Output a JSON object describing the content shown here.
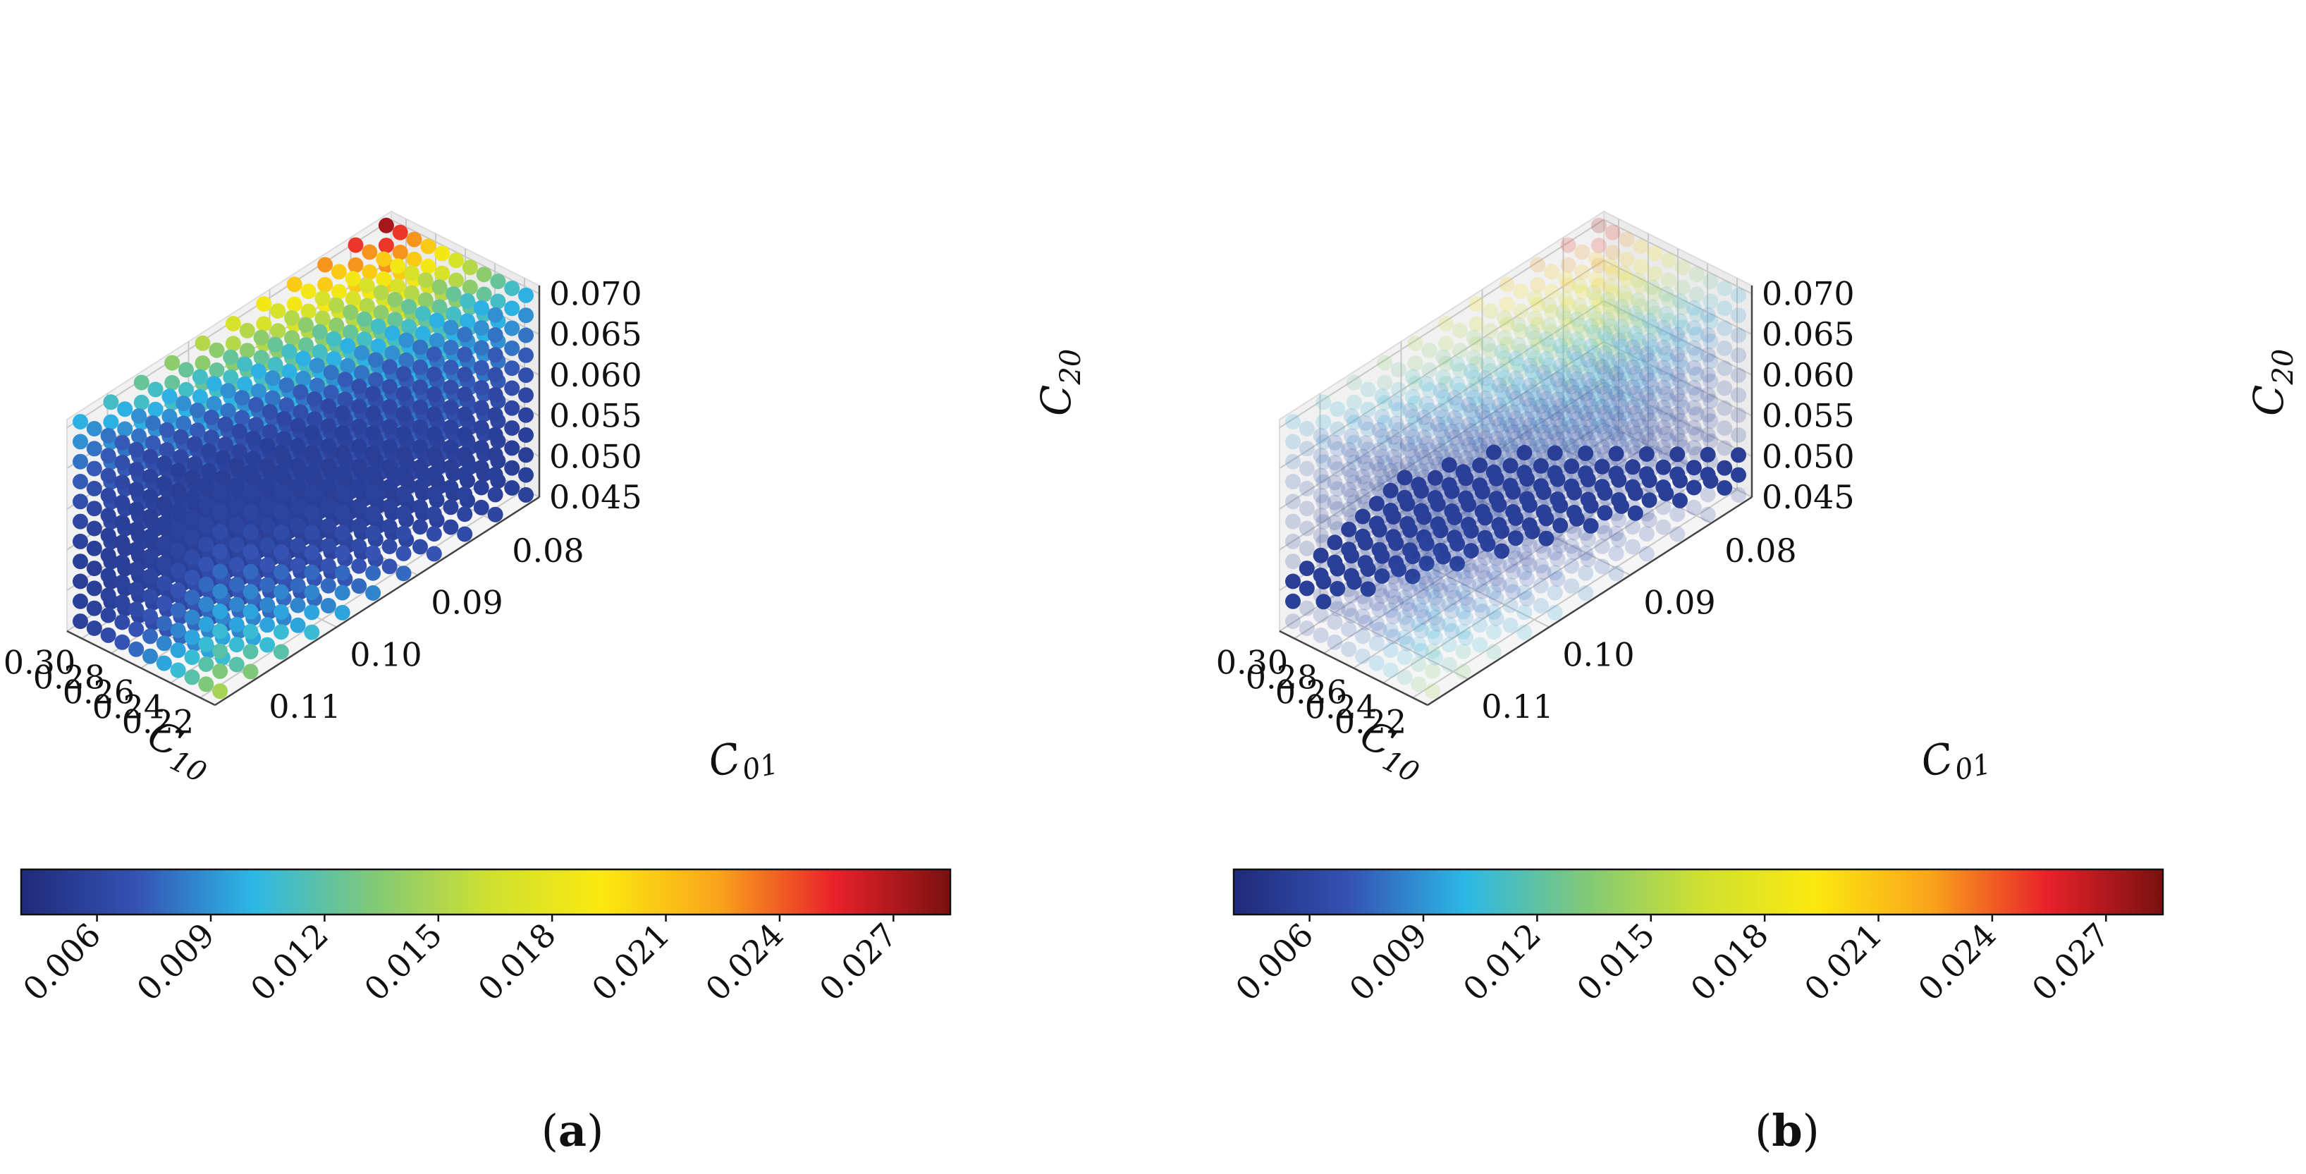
{
  "colormap": [
    "#1f2a7a",
    "#3553b3",
    "#2cb8e6",
    "#7ec87a",
    "#cde032",
    "#fbe90f",
    "#f9a41b",
    "#e8222a",
    "#7a1010"
  ],
  "chart_data": [
    {
      "type": "scatter3d",
      "panel_label": "a",
      "x_axis": {
        "sub": "10",
        "ticks": [
          "0.30",
          "0.28",
          "0.26",
          "0.24",
          "0.22"
        ],
        "range": [
          0.21,
          0.31
        ]
      },
      "y_axis": {
        "sub": "01",
        "ticks": [
          "0.08",
          "0.09",
          "0.10",
          "0.11"
        ],
        "range": [
          0.075,
          0.115
        ]
      },
      "z_axis": {
        "sub": "20",
        "ticks": [
          "0.070",
          "0.065",
          "0.060",
          "0.055",
          "0.050",
          "0.045"
        ],
        "range": [
          0.045,
          0.071
        ]
      },
      "grid": true,
      "grid_points_per_axis": 11,
      "color_range": [
        0.004,
        0.0285
      ],
      "highlight": "none",
      "colorbar": {
        "ticks": [
          "0.006",
          "0.009",
          "0.012",
          "0.015",
          "0.018",
          "0.021",
          "0.024",
          "0.027"
        ],
        "range": [
          0.004,
          0.0285
        ],
        "placement": "bottom"
      }
    },
    {
      "type": "scatter3d",
      "panel_label": "b",
      "x_axis": {
        "sub": "10",
        "ticks": [
          "0.30",
          "0.28",
          "0.26",
          "0.24",
          "0.22"
        ],
        "range": [
          0.21,
          0.31
        ]
      },
      "y_axis": {
        "sub": "01",
        "ticks": [
          "0.08",
          "0.09",
          "0.10",
          "0.11"
        ],
        "range": [
          0.075,
          0.115
        ]
      },
      "z_axis": {
        "sub": "20",
        "ticks": [
          "0.070",
          "0.065",
          "0.060",
          "0.055",
          "0.050",
          "0.045"
        ],
        "range": [
          0.045,
          0.071
        ]
      },
      "grid": true,
      "grid_points_per_axis": 11,
      "color_range": [
        0.004,
        0.0285
      ],
      "highlight": "minimum-valley",
      "colorbar": {
        "ticks": [
          "0.006",
          "0.009",
          "0.012",
          "0.015",
          "0.018",
          "0.021",
          "0.024",
          "0.027"
        ],
        "range": [
          0.004,
          0.0285
        ],
        "placement": "bottom"
      }
    }
  ]
}
